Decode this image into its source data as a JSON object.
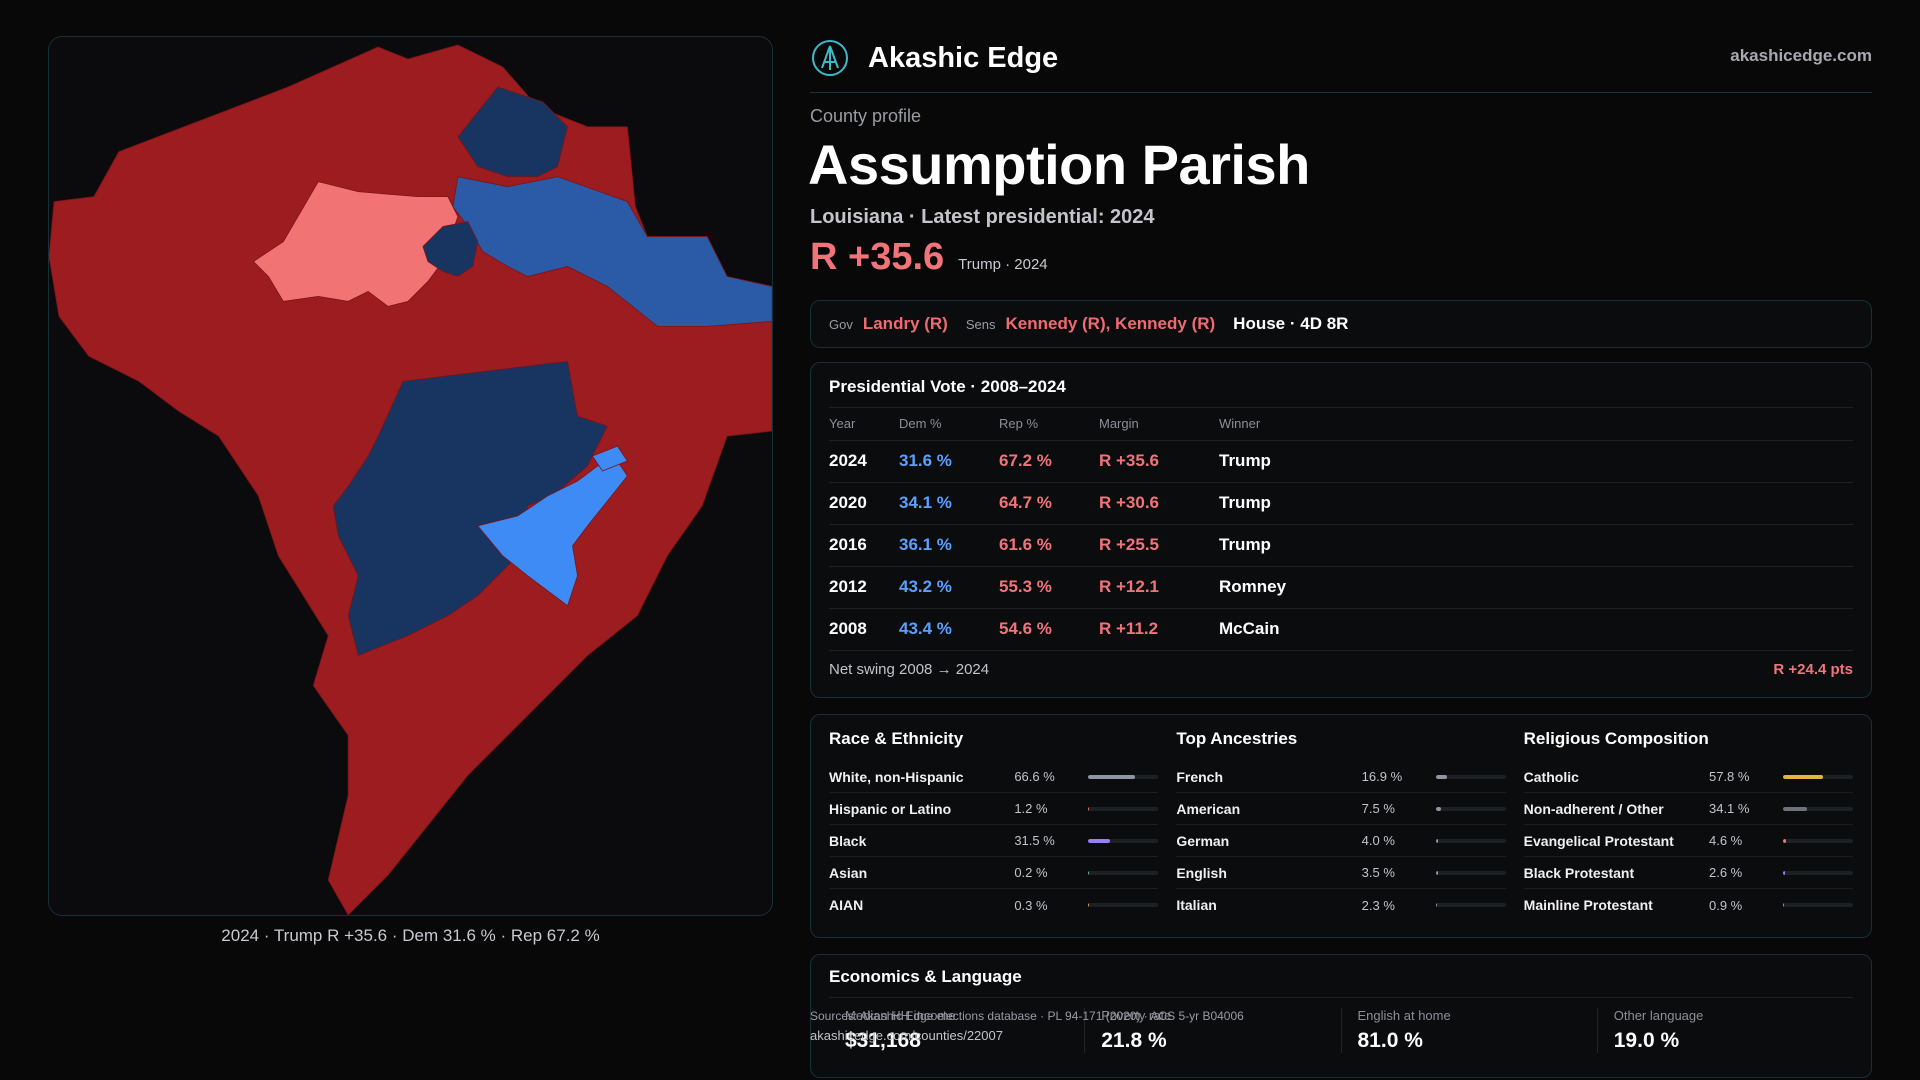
{
  "brand": {
    "name": "Akashic Edge",
    "site": "akashicedge.com"
  },
  "map": {
    "caption": "2024 · Trump R +35.6 · Dem 31.6 % · Rep 67.2 %"
  },
  "profile": {
    "eyebrow": "County profile",
    "title": "Assumption Parish",
    "subtitle": "Louisiana · Latest presidential: 2024",
    "margin": "R +35.6",
    "margin_note": "Trump · 2024"
  },
  "officials": {
    "gov_key": "Gov",
    "gov": "Landry (R)",
    "sens_key": "Sens",
    "sens": "Kennedy (R), Kennedy (R)",
    "house": "House · 4D 8R"
  },
  "presidential": {
    "title": "Presidential Vote · 2008–2024",
    "headers": [
      "Year",
      "Dem %",
      "Rep %",
      "Margin",
      "Winner"
    ],
    "rows": [
      {
        "year": "2024",
        "dem": "31.6 %",
        "rep": "67.2 %",
        "margin": "R +35.6",
        "winner": "Trump"
      },
      {
        "year": "2020",
        "dem": "34.1 %",
        "rep": "64.7 %",
        "margin": "R +30.6",
        "winner": "Trump"
      },
      {
        "year": "2016",
        "dem": "36.1 %",
        "rep": "61.6 %",
        "margin": "R +25.5",
        "winner": "Trump"
      },
      {
        "year": "2012",
        "dem": "43.2 %",
        "rep": "55.3 %",
        "margin": "R +12.1",
        "winner": "Romney"
      },
      {
        "year": "2008",
        "dem": "43.4 %",
        "rep": "54.6 %",
        "margin": "R +11.2",
        "winner": "McCain"
      }
    ],
    "swing_label": "Net swing 2008 → 2024",
    "swing_value": "R +24.4 pts"
  },
  "demographics": [
    {
      "title": "Race & Ethnicity",
      "items": [
        {
          "label": "White, non-Hispanic",
          "value": "66.6 %",
          "pct": 66.6,
          "color": "#8f96a3"
        },
        {
          "label": "Hispanic or Latino",
          "value": "1.2 %",
          "pct": 1.2,
          "color": "#e07a5f"
        },
        {
          "label": "Black",
          "value": "31.5 %",
          "pct": 31.5,
          "color": "#9b7ff0"
        },
        {
          "label": "Asian",
          "value": "0.2 %",
          "pct": 0.2,
          "color": "#5fb3a8"
        },
        {
          "label": "AIAN",
          "value": "0.3 %",
          "pct": 0.3,
          "color": "#c9a35a"
        }
      ]
    },
    {
      "title": "Top Ancestries",
      "items": [
        {
          "label": "French",
          "value": "16.9 %",
          "pct": 16.9,
          "color": "#8f96a3"
        },
        {
          "label": "American",
          "value": "7.5 %",
          "pct": 7.5,
          "color": "#8f96a3"
        },
        {
          "label": "German",
          "value": "4.0 %",
          "pct": 4.0,
          "color": "#8f96a3"
        },
        {
          "label": "English",
          "value": "3.5 %",
          "pct": 3.5,
          "color": "#8f96a3"
        },
        {
          "label": "Italian",
          "value": "2.3 %",
          "pct": 2.3,
          "color": "#8f96a3"
        }
      ]
    },
    {
      "title": "Religious Composition",
      "items": [
        {
          "label": "Catholic",
          "value": "57.8 %",
          "pct": 57.8,
          "color": "#e7b53b"
        },
        {
          "label": "Non-adherent / Other",
          "value": "34.1 %",
          "pct": 34.1,
          "color": "#6f7278"
        },
        {
          "label": "Evangelical Protestant",
          "value": "4.6 %",
          "pct": 4.6,
          "color": "#f0747a"
        },
        {
          "label": "Black Protestant",
          "value": "2.6 %",
          "pct": 2.6,
          "color": "#9b7ff0"
        },
        {
          "label": "Mainline Protestant",
          "value": "0.9 %",
          "pct": 0.9,
          "color": "#5aa0ff"
        }
      ]
    }
  ],
  "economics": {
    "title": "Economics & Language",
    "stats": [
      {
        "label": "Median HH income",
        "value": "$31,168"
      },
      {
        "label": "Poverty rate",
        "value": "21.8 %"
      },
      {
        "label": "English at home",
        "value": "81.0 %"
      },
      {
        "label": "Other language",
        "value": "19.0 %"
      }
    ]
  },
  "sources": {
    "text": "Sources: Akashic Edge elections database · PL 94-171 (2020) · ACS 5-yr B04006",
    "url": "akashicedge.com/counties/22007"
  },
  "colors": {
    "rep_strong": "#9c1c20",
    "rep_light": "#f27374",
    "dem_dark": "#173560",
    "dem_mid": "#2b5aa6",
    "dem_light": "#3f8bf5"
  }
}
